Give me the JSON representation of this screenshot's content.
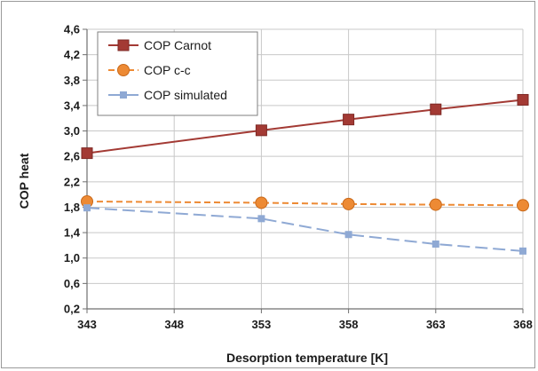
{
  "chart_data": {
    "type": "line",
    "x": [
      343,
      353,
      358,
      363,
      368
    ],
    "x_ticks": [
      "343",
      "348",
      "353",
      "358",
      "363",
      "368"
    ],
    "y_ticks": [
      "0,2",
      "0,6",
      "1,0",
      "1,4",
      "1,8",
      "2,2",
      "2,6",
      "3,0",
      "3,4",
      "3,8",
      "4,2",
      "4,6"
    ],
    "xlim": [
      343,
      368
    ],
    "ylim": [
      0.2,
      4.6
    ],
    "xlabel": "Desorption temperature [K]",
    "ylabel": "COP heat",
    "grid": true,
    "legend_position": "top-left",
    "series": [
      {
        "name": "COP Carnot",
        "values": [
          2.65,
          3.01,
          3.18,
          3.34,
          3.49
        ],
        "color": "#a33a34",
        "marker": "square",
        "dash": "solid"
      },
      {
        "name": "COP c-c",
        "values": [
          1.89,
          1.87,
          1.85,
          1.84,
          1.83
        ],
        "color": "#ed8a34",
        "marker": "circle",
        "dash": "dashed"
      },
      {
        "name": "COP simulated",
        "values": [
          1.79,
          1.62,
          1.37,
          1.22,
          1.11
        ],
        "color": "#8fa9d4",
        "marker": "small-square",
        "dash": "long-dash"
      }
    ]
  }
}
